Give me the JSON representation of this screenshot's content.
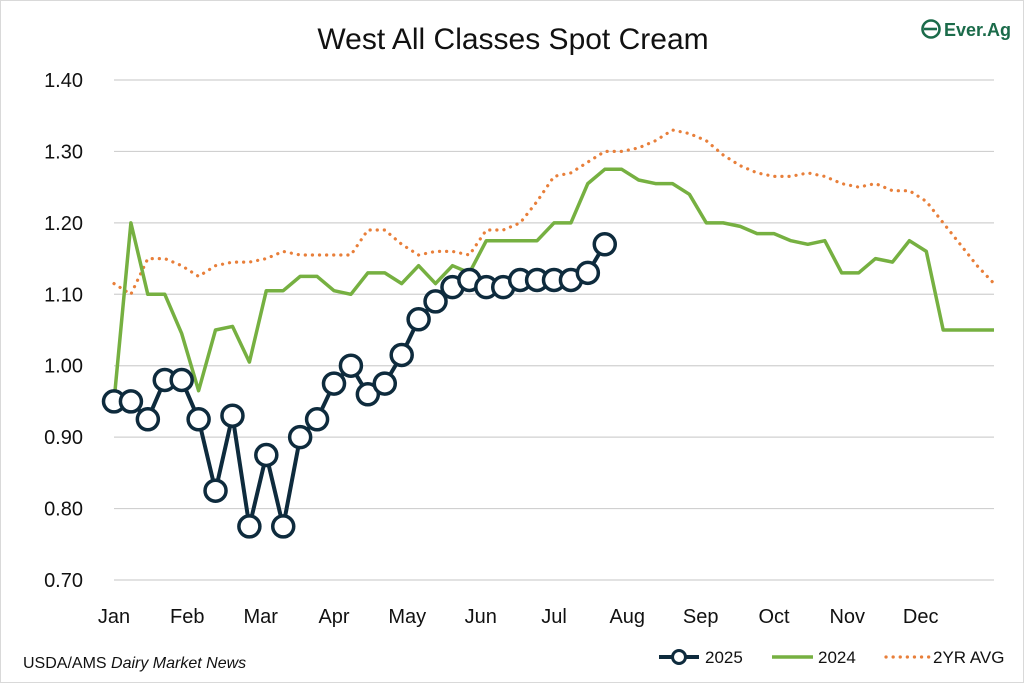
{
  "logo": {
    "text": "Ever.Ag",
    "color": "#1b6b4a"
  },
  "source": {
    "prefix": "USDA/AMS ",
    "italic": "Dairy Market News"
  },
  "chart_data": {
    "type": "line",
    "title": "West All Classes Spot Cream",
    "xlabel": "",
    "ylabel": "",
    "ylim": [
      0.7,
      1.4
    ],
    "yticks": [
      "0.70",
      "0.80",
      "0.90",
      "1.00",
      "1.10",
      "1.20",
      "1.30",
      "1.40"
    ],
    "ytick_values": [
      0.7,
      0.8,
      0.9,
      1.0,
      1.1,
      1.2,
      1.3,
      1.4
    ],
    "xlim": [
      0,
      52
    ],
    "x_unit": "week",
    "month_labels": [
      "Jan",
      "Feb",
      "Mar",
      "Apr",
      "May",
      "Jun",
      "Jul",
      "Aug",
      "Sep",
      "Oct",
      "Nov",
      "Dec"
    ],
    "month_label_weeks": [
      0,
      4.33,
      8.67,
      13,
      17.33,
      21.67,
      26,
      30.33,
      34.67,
      39,
      43.33,
      47.67
    ],
    "grid": true,
    "legend_position": "bottom-right",
    "series": [
      {
        "name": "2025",
        "color": "#0e2b3d",
        "style": "solid-marker",
        "x": [
          0,
          1,
          2,
          3,
          4,
          5,
          6,
          7,
          8,
          9,
          10,
          11,
          12,
          13,
          14,
          15,
          16,
          17,
          18,
          19,
          20,
          21,
          22,
          23,
          24,
          25,
          26,
          27,
          28,
          29
        ],
        "values": [
          0.95,
          0.95,
          0.925,
          0.98,
          0.98,
          0.925,
          0.825,
          0.93,
          0.775,
          0.875,
          0.775,
          0.9,
          0.925,
          0.975,
          1.0,
          0.96,
          0.975,
          1.015,
          1.065,
          1.09,
          1.11,
          1.12,
          1.11,
          1.11,
          1.12,
          1.12,
          1.12,
          1.12,
          1.13,
          1.17
        ]
      },
      {
        "name": "2024",
        "color": "#76b041",
        "style": "solid",
        "x": [
          0,
          1,
          2,
          3,
          4,
          5,
          6,
          7,
          8,
          9,
          10,
          11,
          12,
          13,
          14,
          15,
          16,
          17,
          18,
          19,
          20,
          21,
          22,
          23,
          24,
          25,
          26,
          27,
          28,
          29,
          30,
          31,
          32,
          33,
          34,
          35,
          36,
          37,
          38,
          39,
          40,
          41,
          42,
          43,
          44,
          45,
          46,
          47,
          48,
          49,
          50,
          51,
          52
        ],
        "values": [
          0.95,
          1.2,
          1.1,
          1.1,
          1.045,
          0.965,
          1.05,
          1.055,
          1.005,
          1.105,
          1.105,
          1.125,
          1.125,
          1.105,
          1.1,
          1.13,
          1.13,
          1.115,
          1.14,
          1.115,
          1.14,
          1.13,
          1.175,
          1.175,
          1.175,
          1.175,
          1.2,
          1.2,
          1.255,
          1.275,
          1.275,
          1.26,
          1.255,
          1.255,
          1.24,
          1.2,
          1.2,
          1.195,
          1.185,
          1.185,
          1.175,
          1.17,
          1.175,
          1.13,
          1.13,
          1.15,
          1.145,
          1.175,
          1.16,
          1.05,
          1.05,
          1.05,
          1.05
        ]
      },
      {
        "name": "2YR AVG",
        "color": "#e87f3a",
        "style": "dotted",
        "x": [
          0,
          1,
          2,
          3,
          4,
          5,
          6,
          7,
          8,
          9,
          10,
          11,
          12,
          13,
          14,
          15,
          16,
          17,
          18,
          19,
          20,
          21,
          22,
          23,
          24,
          25,
          26,
          27,
          28,
          29,
          30,
          31,
          32,
          33,
          34,
          35,
          36,
          37,
          38,
          39,
          40,
          41,
          42,
          43,
          44,
          45,
          46,
          47,
          48,
          49,
          50,
          51,
          52
        ],
        "values": [
          1.115,
          1.1,
          1.15,
          1.15,
          1.14,
          1.125,
          1.14,
          1.145,
          1.145,
          1.15,
          1.16,
          1.155,
          1.155,
          1.155,
          1.155,
          1.19,
          1.19,
          1.17,
          1.155,
          1.16,
          1.16,
          1.155,
          1.19,
          1.19,
          1.2,
          1.23,
          1.265,
          1.27,
          1.285,
          1.3,
          1.3,
          1.305,
          1.315,
          1.33,
          1.325,
          1.315,
          1.295,
          1.28,
          1.27,
          1.265,
          1.265,
          1.27,
          1.265,
          1.255,
          1.25,
          1.255,
          1.245,
          1.245,
          1.23,
          1.2,
          1.17,
          1.14,
          1.115
        ]
      }
    ]
  }
}
